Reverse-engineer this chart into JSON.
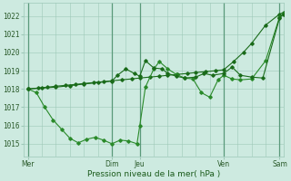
{
  "background_color": "#cdeae0",
  "grid_color": "#9dc8b8",
  "line_color_dark": "#1a6b1a",
  "line_color_med": "#2a8a2a",
  "title": "Pression niveau de la mer( hPa )",
  "ylim": [
    1014.3,
    1022.7
  ],
  "yticks": [
    1015,
    1016,
    1017,
    1018,
    1019,
    1020,
    1021,
    1022
  ],
  "xlim": [
    -0.15,
    9.15
  ],
  "xtick_labels": [
    "Mer",
    "Dim",
    "Jeu",
    "Ven",
    "Sam"
  ],
  "xtick_positions": [
    0,
    3,
    4,
    7,
    9
  ],
  "vlines_dark": [
    0,
    3,
    4,
    7,
    9
  ],
  "series1_x": [
    0.0,
    0.35,
    0.7,
    1.0,
    1.35,
    1.7,
    2.0,
    2.35,
    2.7,
    3.0,
    3.35,
    3.7,
    4.0,
    4.35,
    4.7,
    5.0,
    5.35,
    5.7,
    6.0,
    6.35,
    6.7,
    7.0,
    7.35,
    7.7,
    8.0,
    8.5,
    9.0,
    9.15
  ],
  "series1_y": [
    1018.0,
    1018.05,
    1018.1,
    1018.15,
    1018.2,
    1018.25,
    1018.3,
    1018.35,
    1018.4,
    1018.45,
    1018.5,
    1018.55,
    1018.6,
    1018.65,
    1018.7,
    1018.75,
    1018.8,
    1018.85,
    1018.9,
    1018.95,
    1019.0,
    1019.05,
    1019.5,
    1020.0,
    1020.5,
    1021.5,
    1022.1,
    1022.2
  ],
  "series2_x": [
    0.0,
    0.3,
    0.6,
    0.9,
    1.2,
    1.5,
    1.8,
    2.1,
    2.4,
    2.7,
    3.0,
    3.3,
    3.6,
    3.9,
    4.0,
    4.2,
    4.5,
    4.7,
    5.0,
    5.3,
    5.6,
    5.9,
    6.2,
    6.5,
    6.8,
    7.0,
    7.3,
    7.6,
    8.0,
    8.5,
    9.0,
    9.15
  ],
  "series2_y": [
    1018.0,
    1017.8,
    1017.0,
    1016.3,
    1015.8,
    1015.3,
    1015.05,
    1015.25,
    1015.35,
    1015.2,
    1015.0,
    1015.2,
    1015.15,
    1015.0,
    1016.0,
    1018.1,
    1019.1,
    1019.5,
    1019.1,
    1018.8,
    1018.6,
    1018.55,
    1017.8,
    1017.55,
    1018.5,
    1018.75,
    1018.55,
    1018.5,
    1018.55,
    1019.55,
    1021.95,
    1022.15
  ],
  "series3_x": [
    0.0,
    0.5,
    1.0,
    1.5,
    2.0,
    2.5,
    3.0,
    3.2,
    3.5,
    3.8,
    4.0,
    4.2,
    4.5,
    4.8,
    5.0,
    5.3,
    5.6,
    6.0,
    6.3,
    6.6,
    7.0,
    7.3,
    7.6,
    8.0,
    8.4,
    9.0,
    9.15
  ],
  "series3_y": [
    1018.0,
    1018.05,
    1018.1,
    1018.18,
    1018.27,
    1018.35,
    1018.43,
    1018.75,
    1019.1,
    1018.85,
    1018.7,
    1019.55,
    1019.15,
    1019.1,
    1018.85,
    1018.7,
    1018.6,
    1018.65,
    1018.85,
    1018.75,
    1018.85,
    1019.2,
    1018.75,
    1018.65,
    1018.6,
    1021.9,
    1022.1
  ]
}
